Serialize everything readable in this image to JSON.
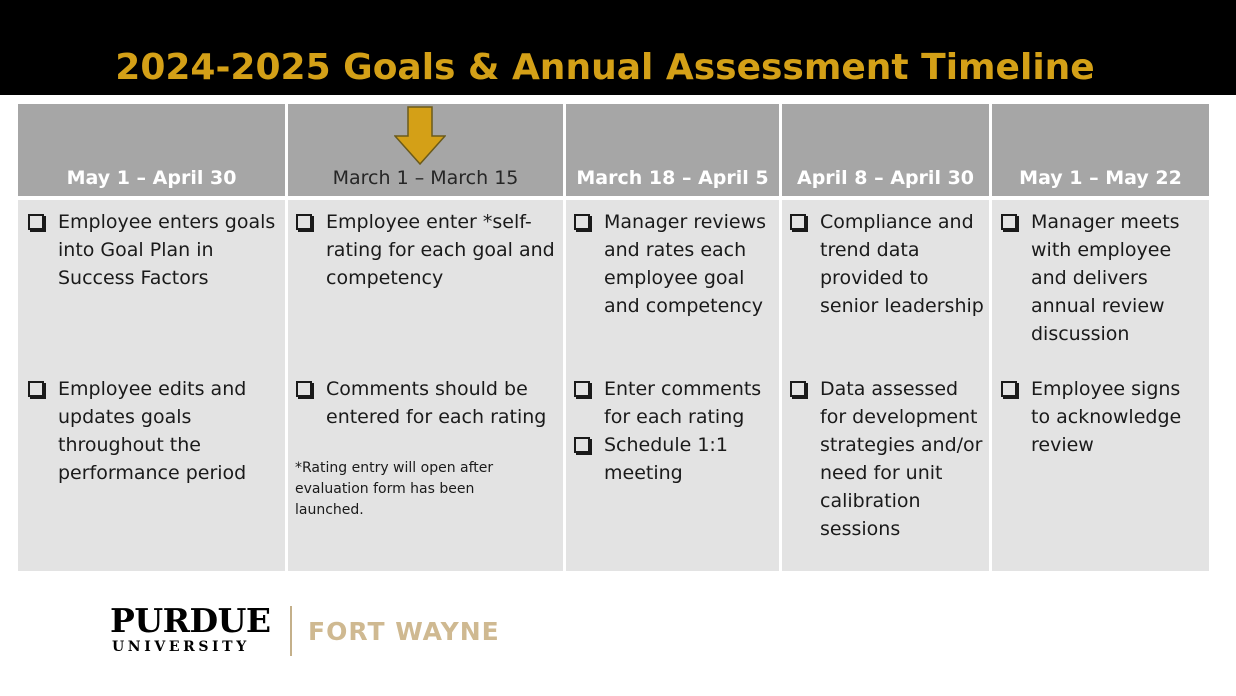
{
  "title": "2024-2025 Goals & Annual Assessment Timeline",
  "colors": {
    "title": "#d4a017",
    "header_bg": "#a6a6a6",
    "body_bg": "#e3e3e3",
    "arrow": "#d4a017",
    "campus": "#cfb991"
  },
  "columns": [
    {
      "header": "May 1 – April 30",
      "items": [
        "Employee enters goals\ninto Goal Plan in\nSuccess Factors",
        "Employee edits and\nupdates goals\nthroughout the\nperformance period"
      ]
    },
    {
      "header": "March 1 – March 15",
      "items": [
        "Employee enter *self-\nrating for each goal and\ncompetency",
        "Comments should be\nentered for each rating"
      ],
      "note": "*Rating entry will open after\nevaluation form has been\nlaunched."
    },
    {
      "header": "March 18 – April 5",
      "items": [
        "Manager reviews\nand rates each\nemployee goal\nand competency",
        "Enter comments\nfor each rating",
        "Schedule 1:1\nmeeting"
      ]
    },
    {
      "header": "April 8 – April 30",
      "items": [
        "Compliance and\ntrend data\nprovided to\nsenior leadership",
        "Data assessed\nfor development\nstrategies and/or\nneed for unit\ncalibration\nsessions"
      ]
    },
    {
      "header": "May 1 – May 22",
      "items": [
        "Manager meets\nwith employee\nand delivers\nannual review\ndiscussion",
        "Employee signs\nto acknowledge\nreview"
      ]
    }
  ],
  "logo": {
    "name": "PURDUE",
    "sub": "UNIVERSITY",
    "campus": "FORT WAYNE"
  }
}
